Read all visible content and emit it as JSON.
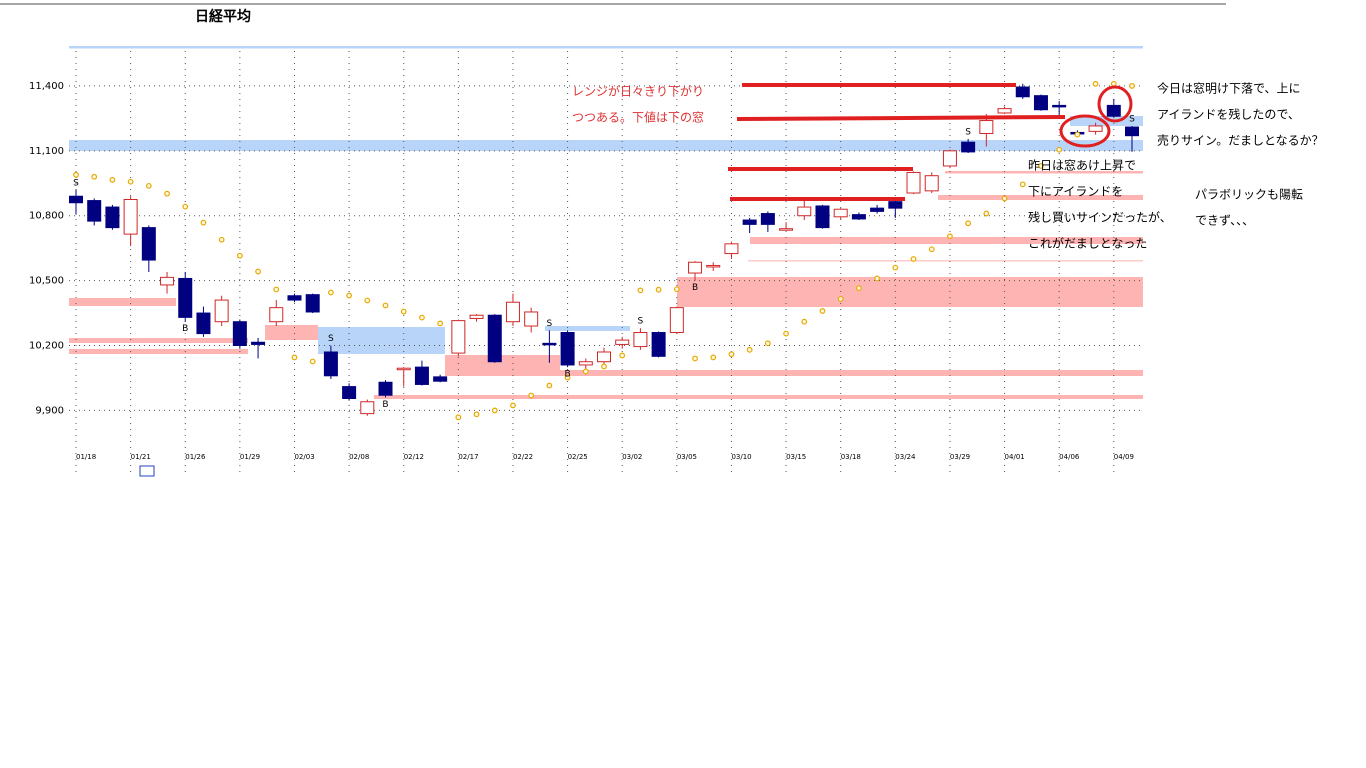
{
  "chart_data": {
    "type": "candlestick",
    "title": "日経平均",
    "categories": [
      "01/18",
      null,
      null,
      "01/21",
      null,
      null,
      "01/26",
      null,
      null,
      "01/29",
      null,
      null,
      "02/03",
      null,
      null,
      "02/08",
      null,
      null,
      "02/12",
      null,
      null,
      "02/17",
      null,
      null,
      "02/22",
      null,
      null,
      "02/25",
      null,
      null,
      "03/02",
      null,
      null,
      "03/05",
      null,
      null,
      "03/10",
      null,
      null,
      "03/15",
      null,
      null,
      "03/18",
      null,
      null,
      "03/24",
      null,
      null,
      "03/29",
      null,
      null,
      "04/01",
      null,
      null,
      "04/06",
      null,
      null,
      "04/09",
      null
    ],
    "values": [
      [
        10890,
        10920,
        10805,
        10860
      ],
      [
        10870,
        10880,
        10755,
        10775
      ],
      [
        10840,
        10850,
        10735,
        10745
      ],
      [
        10715,
        10890,
        10660,
        10875
      ],
      [
        10745,
        10755,
        10540,
        10595
      ],
      [
        10480,
        10540,
        10440,
        10515
      ],
      [
        10510,
        10540,
        10310,
        10330
      ],
      [
        10350,
        10380,
        10240,
        10255
      ],
      [
        10310,
        10430,
        10290,
        10410
      ],
      [
        10310,
        10320,
        10185,
        10200
      ],
      [
        10215,
        10235,
        10140,
        10205
      ],
      [
        10310,
        10410,
        10290,
        10375
      ],
      [
        10430,
        10440,
        10400,
        10410
      ],
      [
        10435,
        10440,
        10350,
        10355
      ],
      [
        10170,
        10200,
        10045,
        10060
      ],
      [
        10010,
        10025,
        9945,
        9955
      ],
      [
        9885,
        9950,
        9875,
        9940
      ],
      [
        10030,
        10040,
        9960,
        9970
      ],
      [
        10090,
        10100,
        10010,
        10095
      ],
      [
        10100,
        10130,
        10015,
        10020
      ],
      [
        10055,
        10065,
        10030,
        10035
      ],
      [
        10165,
        10320,
        10150,
        10315
      ],
      [
        10325,
        10345,
        10310,
        10340
      ],
      [
        10340,
        10345,
        10120,
        10125
      ],
      [
        10310,
        10440,
        10290,
        10400
      ],
      [
        10290,
        10375,
        10260,
        10355
      ],
      [
        10210,
        10270,
        10120,
        10205
      ],
      [
        10260,
        10270,
        10100,
        10110
      ],
      [
        10110,
        10140,
        10080,
        10125
      ],
      [
        10125,
        10190,
        10100,
        10170
      ],
      [
        10205,
        10240,
        10185,
        10225
      ],
      [
        10195,
        10280,
        10180,
        10260
      ],
      [
        10260,
        10265,
        10145,
        10150
      ],
      [
        10260,
        10380,
        10255,
        10375
      ],
      [
        10535,
        10590,
        10500,
        10585
      ],
      [
        10570,
        10585,
        10545,
        10570
      ],
      [
        10625,
        10680,
        10600,
        10670
      ],
      [
        10780,
        10790,
        10720,
        10760
      ],
      [
        10810,
        10820,
        10725,
        10760
      ],
      [
        10735,
        10770,
        10735,
        10740
      ],
      [
        10800,
        10870,
        10780,
        10840
      ],
      [
        10845,
        10850,
        10740,
        10745
      ],
      [
        10795,
        10835,
        10785,
        10830
      ],
      [
        10805,
        10815,
        10780,
        10785
      ],
      [
        10835,
        10850,
        10810,
        10820
      ],
      [
        10865,
        10880,
        10790,
        10835
      ],
      [
        10905,
        11005,
        10900,
        11000
      ],
      [
        10915,
        11000,
        10905,
        10985
      ],
      [
        11030,
        11105,
        11020,
        11100
      ],
      [
        11140,
        11155,
        11090,
        11095
      ],
      [
        11180,
        11270,
        11120,
        11240
      ],
      [
        11275,
        11305,
        11270,
        11295
      ],
      [
        11395,
        11410,
        11340,
        11350
      ],
      [
        11355,
        11360,
        11285,
        11290
      ],
      [
        11310,
        11330,
        11250,
        11305
      ],
      [
        11185,
        11195,
        11165,
        11180
      ],
      [
        11190,
        11230,
        11175,
        11215
      ],
      [
        11310,
        11340,
        11255,
        11260
      ],
      [
        11210,
        11215,
        11095,
        11170
      ]
    ],
    "up_color": "#d02828",
    "down_color": "#000080",
    "sar": [
      10989,
      10980,
      10966,
      10957,
      10938,
      10902,
      10842,
      10768,
      10689,
      10615,
      10542,
      10459,
      10145,
      10126,
      10445,
      10431,
      10408,
      10385,
      10357,
      10329,
      10302,
      9868,
      9882,
      9900,
      9923,
      9969,
      10015,
      10052,
      10080,
      10103,
      10154,
      10455,
      10458,
      10460,
      10140,
      10145,
      10160,
      10180,
      10210,
      10255,
      10310,
      10360,
      10415,
      10465,
      10510,
      10560,
      10600,
      10645,
      10705,
      10765,
      10810,
      10880,
      10945,
      11030,
      11105,
      11175,
      11410,
      11410,
      11400
    ],
    "sar_color": "#e8a800",
    "signals": [
      "S",
      null,
      null,
      null,
      null,
      null,
      "B",
      null,
      null,
      null,
      null,
      null,
      null,
      null,
      "S",
      null,
      null,
      "B",
      null,
      null,
      null,
      null,
      null,
      null,
      null,
      null,
      "S",
      "B",
      null,
      null,
      null,
      "S",
      null,
      null,
      "B",
      null,
      null,
      null,
      null,
      null,
      null,
      null,
      null,
      null,
      null,
      null,
      null,
      null,
      null,
      "S",
      null,
      null,
      null,
      null,
      null,
      null,
      null,
      null,
      "S"
    ],
    "ylim": [
      9740,
      11580
    ],
    "yticks": [
      {
        "value": 9900,
        "label": "9,900"
      },
      {
        "value": 10200,
        "label": "10,200"
      },
      {
        "value": 10500,
        "label": "10,500"
      },
      {
        "value": 10800,
        "label": "10,800"
      },
      {
        "value": 11100,
        "label": "11,100"
      },
      {
        "value": 11400,
        "label": "11,400"
      }
    ],
    "grid": true,
    "annotations": [
      "レンジが日々きり下がり",
      "つつある。下値は下の窓",
      "今日は窓明け下落で、上に",
      "アイランドを残したので、",
      "売りサイン。だましとなるか？",
      "昨日は窓あけ上昇で",
      "下にアイランドを",
      "残し買いサインだったが、",
      "これがだましとなった",
      "パラボリックも陽転",
      "できず、、、"
    ]
  }
}
